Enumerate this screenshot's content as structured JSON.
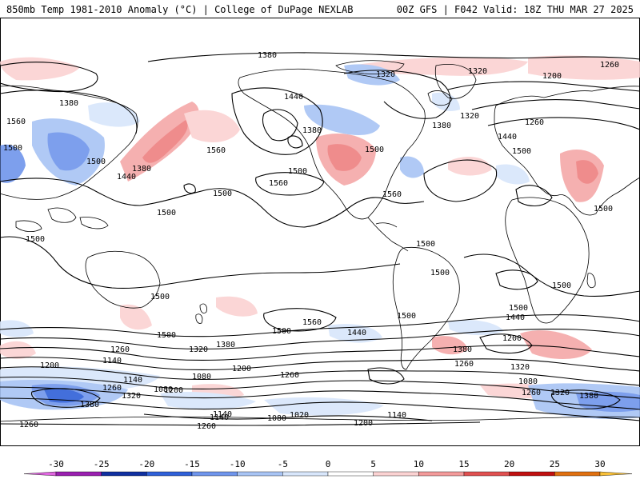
{
  "header": {
    "left": "850mb Temp 1981-2010 Anomaly (°C) | College of DuPage NEXLAB",
    "right": "00Z GFS | F042 Valid: 18Z THU MAR 27 2025"
  },
  "contour_labels": [
    "1380",
    "1320",
    "1260",
    "1200",
    "1320",
    "1380",
    "1560",
    "1500",
    "1500",
    "1440",
    "1380",
    "1440",
    "1380",
    "1500",
    "1560",
    "1500",
    "1560",
    "1500",
    "1500",
    "1560",
    "1320",
    "1380",
    "1440",
    "1260",
    "1500",
    "1500",
    "1500",
    "1500",
    "1500",
    "1500",
    "1500",
    "1560",
    "1500",
    "1440",
    "1260",
    "1320",
    "1380",
    "1200",
    "1140",
    "1080",
    "1200",
    "1140",
    "1260",
    "1080",
    "1200",
    "1320",
    "1140",
    "1080",
    "1020",
    "1140",
    "1200",
    "1260",
    "1320",
    "1380",
    "1440",
    "1500",
    "1200",
    "1260",
    "1080",
    "1260",
    "1320",
    "1380",
    "1260",
    "1140",
    "1260",
    "1500",
    "1500",
    "1380"
  ],
  "colorbar": {
    "ticks": [
      "-30",
      "-25",
      "-20",
      "-15",
      "-10",
      "-5",
      "0",
      "5",
      "10",
      "15",
      "20",
      "25",
      "30"
    ],
    "colors": [
      "#e066e0",
      "#9a1fb0",
      "#1030a0",
      "#2f60d8",
      "#6f95ec",
      "#a8c4f4",
      "#d8e6fb",
      "#ffffff",
      "#fbd2d2",
      "#f39a9a",
      "#e05050",
      "#c01010",
      "#e07010",
      "#f8c038"
    ]
  }
}
